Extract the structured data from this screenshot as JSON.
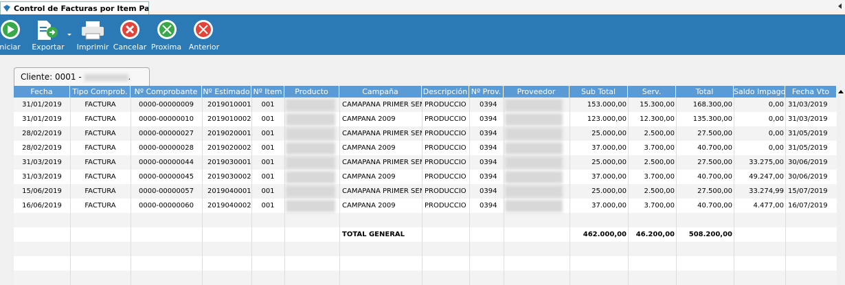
{
  "tab": {
    "title": "Control de Facturas por Item Pau..."
  },
  "toolbar": {
    "buttons": [
      "Iniciar",
      "Exportar",
      "Imprimir",
      "Cancelar",
      "Proxima",
      "Anterior"
    ]
  },
  "client_tab": {
    "label": "Cliente: 0001 -",
    "suffix": "."
  },
  "table": {
    "columns": [
      "Fecha",
      "Tipo Comprob.",
      "Nº Comprobante",
      "Nº Estimado",
      "Nº Item",
      "Producto",
      "Campaña",
      "Descripción",
      "Nº Prov.",
      "Proveedor",
      "Sub Total",
      "Serv.",
      "Total",
      "Saldo Impago",
      "Fecha Vto"
    ],
    "rows": [
      [
        "31/01/2019",
        "FACTURA",
        "0000-00000009",
        "2019010001",
        "001",
        null,
        "CAMAPANA PRIMER SEME",
        "PRODUCCIO",
        "0394",
        null,
        "153.000,00",
        "15.300,00",
        "168.300,00",
        "0,00",
        "31/03/2019"
      ],
      [
        "31/01/2019",
        "FACTURA",
        "0000-00000010",
        "2019010002",
        "001",
        null,
        "CAMPANA 2009",
        "PRODUCCIO",
        "0394",
        null,
        "123.000,00",
        "12.300,00",
        "135.300,00",
        "0,00",
        "31/03/2019"
      ],
      [
        "28/02/2019",
        "FACTURA",
        "0000-00000027",
        "2019020001",
        "001",
        null,
        "CAMAPANA PRIMER SEME",
        "PRODUCCIO",
        "0394",
        null,
        "25.000,00",
        "2.500,00",
        "27.500,00",
        "0,00",
        "31/05/2019"
      ],
      [
        "28/02/2019",
        "FACTURA",
        "0000-00000028",
        "2019020002",
        "001",
        null,
        "CAMPANA 2009",
        "PRODUCCIO",
        "0394",
        null,
        "37.000,00",
        "3.700,00",
        "40.700,00",
        "0,00",
        "31/05/2019"
      ],
      [
        "31/03/2019",
        "FACTURA",
        "0000-00000044",
        "2019030001",
        "001",
        null,
        "CAMAPANA PRIMER SEME",
        "PRODUCCIO",
        "0394",
        null,
        "25.000,00",
        "2.500,00",
        "27.500,00",
        "33.275,00",
        "30/06/2019"
      ],
      [
        "31/03/2019",
        "FACTURA",
        "0000-00000045",
        "2019030002",
        "001",
        null,
        "CAMPANA 2009",
        "PRODUCCIO",
        "0394",
        null,
        "37.000,00",
        "3.700,00",
        "40.700,00",
        "49.247,00",
        "30/06/2019"
      ],
      [
        "15/06/2019",
        "FACTURA",
        "0000-00000057",
        "2019040001",
        "001",
        null,
        "CAMAPANA PRIMER SEME",
        "PRODUCCIO",
        "0394",
        null,
        "25.000,00",
        "2.500,00",
        "27.500,00",
        "33.274,99",
        "15/07/2019"
      ],
      [
        "16/06/2019",
        "FACTURA",
        "0000-00000060",
        "2019040002",
        "001",
        null,
        "CAMPANA 2009",
        "PRODUCCIO",
        "0394",
        null,
        "37.000,00",
        "3.700,00",
        "40.700,00",
        "4.477,00",
        "16/07/2019"
      ]
    ],
    "total": {
      "label": "TOTAL GENERAL",
      "sub_total": "462.000,00",
      "serv": "46.200,00",
      "total": "508.200,00"
    }
  }
}
